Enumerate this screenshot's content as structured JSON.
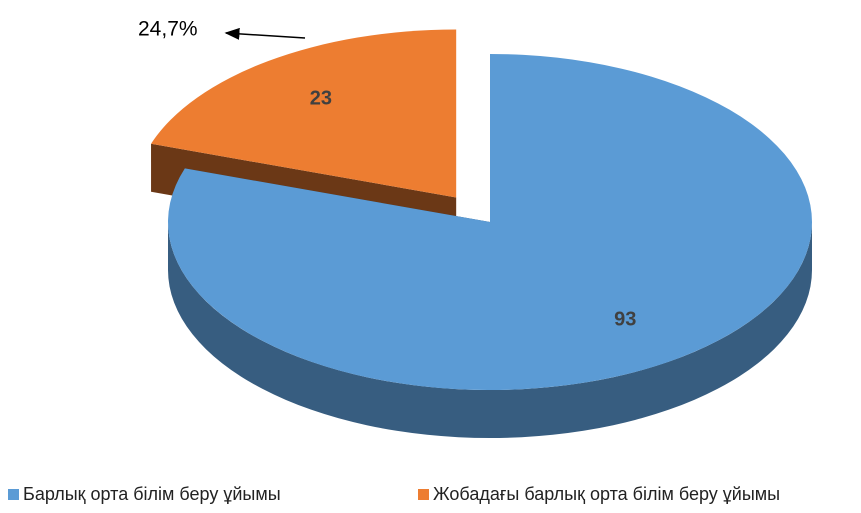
{
  "chart_data": {
    "type": "pie",
    "categories": [
      "Барлық орта білім беру ұйымы",
      "Жобадағы барлық орта білім беру ұйымы"
    ],
    "values": [
      93,
      23
    ],
    "colors": [
      "#5b9bd5",
      "#ed7d31"
    ],
    "annotation": "24,7%",
    "legend": "bottom"
  }
}
